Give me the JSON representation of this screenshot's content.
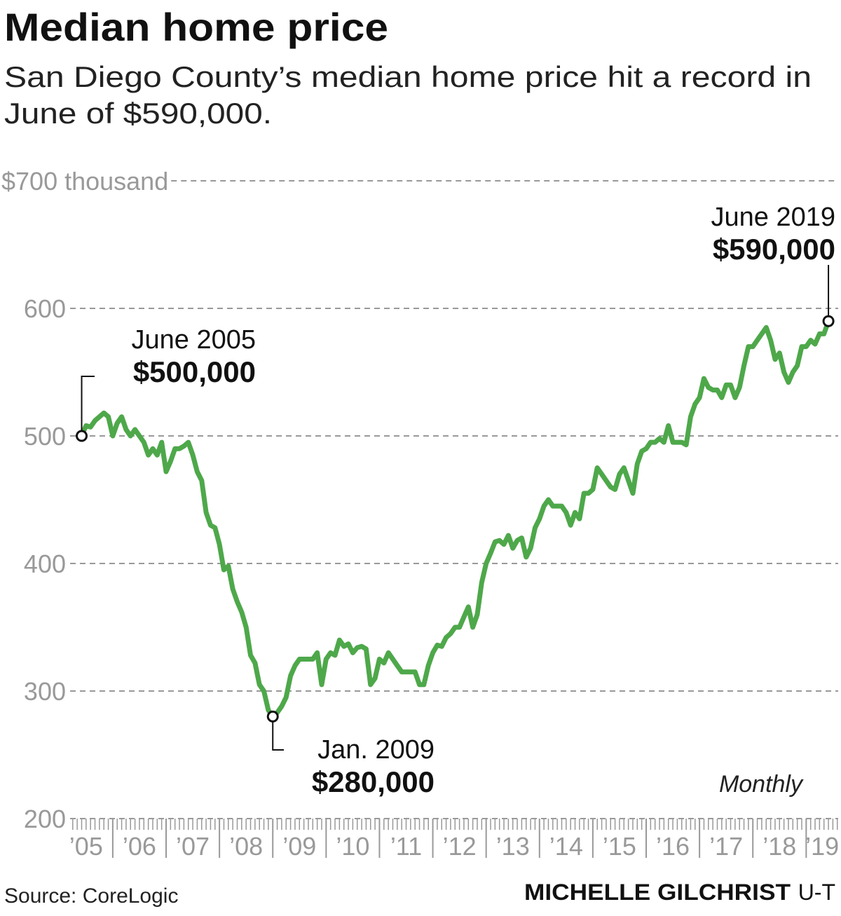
{
  "chart_data": {
    "type": "line",
    "title": "Median home price",
    "subtitle": [
      "San Diego County’s median home price hit a record in",
      "June of $590,000."
    ],
    "note": "Monthly",
    "source": "Source: CoreLogic",
    "credit": "MICHELLE GILCHRIST",
    "credit_org": "U-T",
    "xlim": [
      2005.2,
      2019.6
    ],
    "xticks": [
      {
        "value": 2005.5,
        "label": "’05"
      },
      {
        "value": 2006.5,
        "label": "’06"
      },
      {
        "value": 2007.5,
        "label": "’07"
      },
      {
        "value": 2008.5,
        "label": "’08"
      },
      {
        "value": 2009.5,
        "label": "’09"
      },
      {
        "value": 2010.5,
        "label": "’10"
      },
      {
        "value": 2011.5,
        "label": "’11"
      },
      {
        "value": 2012.5,
        "label": "’12"
      },
      {
        "value": 2013.5,
        "label": "’13"
      },
      {
        "value": 2014.5,
        "label": "’14"
      },
      {
        "value": 2015.5,
        "label": "’15"
      },
      {
        "value": 2016.5,
        "label": "’16"
      },
      {
        "value": 2017.5,
        "label": "’17"
      },
      {
        "value": 2018.5,
        "label": "’18"
      },
      {
        "value": 2019.3,
        "label": "’19"
      }
    ],
    "ylim": [
      200,
      700
    ],
    "yticks": [
      200,
      300,
      400,
      500,
      600,
      {
        "value": 700,
        "label": "$700 thousand"
      }
    ],
    "grid": true,
    "series": [
      {
        "name": "Median home price",
        "color": "#4ea84a",
        "x": [
          2005.417,
          2005.5,
          2005.583,
          2005.667,
          2005.75,
          2005.833,
          2005.917,
          2006,
          2006.083,
          2006.167,
          2006.25,
          2006.333,
          2006.417,
          2006.5,
          2006.583,
          2006.667,
          2006.75,
          2006.833,
          2006.917,
          2007,
          2007.083,
          2007.167,
          2007.25,
          2007.333,
          2007.417,
          2007.5,
          2007.583,
          2007.667,
          2007.75,
          2007.833,
          2007.917,
          2008,
          2008.083,
          2008.167,
          2008.25,
          2008.333,
          2008.417,
          2008.5,
          2008.583,
          2008.667,
          2008.75,
          2008.833,
          2008.917,
          2009,
          2009.083,
          2009.167,
          2009.25,
          2009.333,
          2009.417,
          2009.5,
          2009.583,
          2009.667,
          2009.75,
          2009.833,
          2009.917,
          2010,
          2010.083,
          2010.167,
          2010.25,
          2010.333,
          2010.417,
          2010.5,
          2010.583,
          2010.667,
          2010.75,
          2010.833,
          2010.917,
          2011,
          2011.083,
          2011.167,
          2011.25,
          2011.333,
          2011.417,
          2011.5,
          2011.583,
          2011.667,
          2011.75,
          2011.833,
          2011.917,
          2012,
          2012.083,
          2012.167,
          2012.25,
          2012.333,
          2012.417,
          2012.5,
          2012.583,
          2012.667,
          2012.75,
          2012.833,
          2012.917,
          2013,
          2013.083,
          2013.167,
          2013.25,
          2013.333,
          2013.417,
          2013.5,
          2013.583,
          2013.667,
          2013.75,
          2013.833,
          2013.917,
          2014,
          2014.083,
          2014.167,
          2014.25,
          2014.333,
          2014.417,
          2014.5,
          2014.583,
          2014.667,
          2014.75,
          2014.833,
          2014.917,
          2015,
          2015.083,
          2015.167,
          2015.25,
          2015.333,
          2015.417,
          2015.5,
          2015.583,
          2015.667,
          2015.75,
          2015.833,
          2015.917,
          2016,
          2016.083,
          2016.167,
          2016.25,
          2016.333,
          2016.417,
          2016.5,
          2016.583,
          2016.667,
          2016.75,
          2016.833,
          2016.917,
          2017,
          2017.083,
          2017.167,
          2017.25,
          2017.333,
          2017.417,
          2017.5,
          2017.583,
          2017.667,
          2017.75,
          2017.833,
          2017.917,
          2018,
          2018.083,
          2018.167,
          2018.25,
          2018.333,
          2018.417,
          2018.5,
          2018.583,
          2018.667,
          2018.75,
          2018.833,
          2018.917,
          2019,
          2019.083,
          2019.167,
          2019.25,
          2019.333,
          2019.417
        ],
        "values": [
          500,
          508,
          507,
          512,
          515,
          518,
          515,
          500,
          510,
          515,
          505,
          500,
          505,
          500,
          495,
          485,
          490,
          485,
          495,
          472,
          480,
          490,
          490,
          492,
          495,
          485,
          472,
          465,
          440,
          430,
          428,
          415,
          395,
          398,
          380,
          370,
          362,
          350,
          328,
          322,
          305,
          300,
          285,
          280,
          283,
          288,
          295,
          312,
          320,
          325,
          325,
          325,
          325,
          330,
          305,
          325,
          330,
          328,
          340,
          335,
          337,
          330,
          334,
          335,
          333,
          305,
          310,
          325,
          322,
          330,
          325,
          320,
          315,
          315,
          315,
          315,
          305,
          305,
          320,
          330,
          336,
          335,
          342,
          345,
          350,
          350,
          358,
          366,
          350,
          360,
          385,
          400,
          408,
          417,
          418,
          415,
          422,
          412,
          418,
          420,
          405,
          412,
          428,
          435,
          445,
          450,
          445,
          445,
          445,
          440,
          430,
          440,
          435,
          455,
          455,
          458,
          475,
          470,
          465,
          460,
          458,
          470,
          475,
          465,
          455,
          478,
          488,
          490,
          495,
          495,
          498,
          495,
          508,
          495,
          495,
          495,
          493,
          515,
          525,
          530,
          545,
          538,
          536,
          536,
          530,
          540,
          540,
          530,
          538,
          555,
          570,
          570,
          575,
          580,
          585,
          575,
          560,
          565,
          550,
          542,
          550,
          555,
          570,
          570,
          575,
          572,
          580,
          580,
          590
        ]
      }
    ],
    "annotations": [
      {
        "text": "June 2005",
        "label": "$500,000",
        "x": 2005.417,
        "value": 500
      },
      {
        "text": "Jan. 2009",
        "label": "$280,000",
        "x": 2009,
        "value": 280
      },
      {
        "text": "June 2019",
        "label": "$590,000",
        "x": 2019.417,
        "value": 590
      }
    ]
  }
}
